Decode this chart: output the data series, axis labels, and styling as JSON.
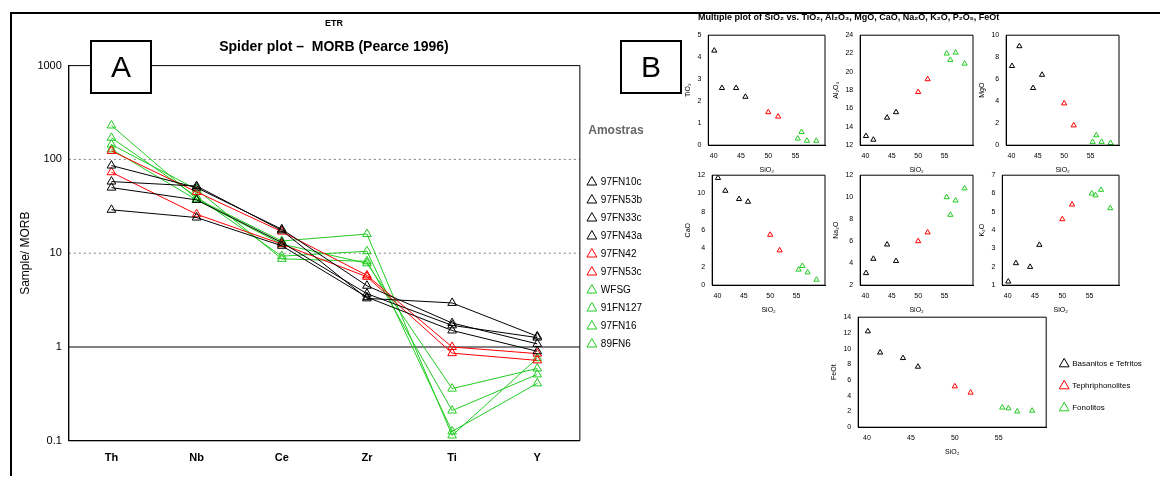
{
  "chart_data": [
    {
      "type": "line",
      "title": "ETR",
      "subtitle": "Spider plot –  MORB (Pearce 1996)",
      "ylabel": "Sample/ MORB",
      "legend_title": "Amostras",
      "legend": "right",
      "log": true,
      "marker": "triangle",
      "annotations": [
        "A"
      ],
      "categories": [
        "Th",
        "Nb",
        "Ce",
        "Zr",
        "Ti",
        "Y"
      ],
      "ylim": [
        0.1,
        1000
      ],
      "yticks": [
        0.1,
        1,
        10,
        100,
        1000
      ],
      "ref_lines": [
        {
          "axis": "y",
          "value": 1,
          "color": "#000000",
          "line_style": "solid"
        },
        {
          "axis": "y",
          "value": 10,
          "color": "#808080",
          "line_style": "dotted"
        },
        {
          "axis": "y",
          "value": 100,
          "color": "#808080",
          "line_style": "dotted"
        }
      ],
      "series": [
        {
          "name": "97FN10c",
          "color": "#000000",
          "values": [
            86,
            50,
            18,
            4.5,
            1.8,
            1.08
          ]
        },
        {
          "name": "97FN53b",
          "color": "#000000",
          "values": [
            58,
            52,
            17.5,
            3.3,
            2.95,
            1.3
          ]
        },
        {
          "name": "97FN33c",
          "color": "#000000",
          "values": [
            50,
            37,
            13,
            3.7,
            1.7,
            1.26
          ]
        },
        {
          "name": "97FN43a",
          "color": "#000000",
          "values": [
            29,
            24,
            12,
            3.4,
            1.5,
            0.9
          ]
        },
        {
          "name": "97FN42",
          "color": "#ff0000",
          "values": [
            123,
            45,
            17,
            5.8,
            1.0,
            0.85
          ]
        },
        {
          "name": "97FN53c",
          "color": "#ff0000",
          "values": [
            73,
            26,
            12.5,
            5.6,
            0.86,
            0.72
          ]
        },
        {
          "name": "WFSG",
          "color": "#22cc22",
          "values": [
            230,
            38,
            13.5,
            16,
            0.114,
            0.76
          ]
        },
        {
          "name": "91FN127",
          "color": "#22cc22",
          "values": [
            170,
            40,
            9.3,
            10.5,
            0.126,
            0.41
          ]
        },
        {
          "name": "97FN16",
          "color": "#22cc22",
          "values": [
            144,
            48,
            8.7,
            8.2,
            0.21,
            0.51
          ]
        },
        {
          "name": "89FN6",
          "color": "#22cc22",
          "values": [
            128,
            37,
            12.5,
            7.8,
            0.36,
            0.59
          ]
        }
      ]
    },
    {
      "type": "scatter",
      "title": "Multiple plot of SiO₂ vs. TiO₂, Al₂O₃, MgO, CaO, Na₂O, K₂O, P₂O₅, FeOt",
      "annotations": [
        "B"
      ],
      "xlabel": "SiO₂",
      "ylabel": "TiO₂",
      "marker": "triangle",
      "xlim": [
        39,
        60.4
      ],
      "xticks": [
        40,
        45,
        50,
        55
      ],
      "ylim": [
        0,
        5
      ],
      "yticks": [
        0,
        1,
        2,
        3,
        4,
        5
      ],
      "series": [
        {
          "color": "#000000",
          "x": [
            40.1,
            41.5,
            44.1,
            45.8
          ],
          "values": [
            4.3,
            2.6,
            2.6,
            2.2
          ]
        },
        {
          "color": "#ff0000",
          "x": [
            50.0,
            51.8
          ],
          "values": [
            1.5,
            1.3
          ]
        },
        {
          "color": "#22cc22",
          "x": [
            55.4,
            56.1,
            57.1,
            58.8
          ],
          "values": [
            0.3,
            0.6,
            0.2,
            0.2
          ]
        }
      ]
    },
    {
      "type": "scatter",
      "xlabel": "SiO₂",
      "ylabel": "Al₂O₃",
      "marker": "triangle",
      "xlim": [
        39,
        60.4
      ],
      "xticks": [
        40,
        45,
        50,
        55
      ],
      "ylim": [
        12,
        24
      ],
      "yticks": [
        12,
        14,
        16,
        18,
        20,
        22,
        24
      ],
      "series": [
        {
          "color": "#000000",
          "x": [
            40.1,
            41.5,
            44.1,
            45.8
          ],
          "values": [
            13.0,
            12.6,
            15.0,
            15.6
          ]
        },
        {
          "color": "#ff0000",
          "x": [
            50.0,
            51.8
          ],
          "values": [
            17.8,
            19.2
          ]
        },
        {
          "color": "#22cc22",
          "x": [
            55.4,
            56.1,
            57.1,
            58.8
          ],
          "values": [
            22.0,
            21.3,
            22.1,
            20.9
          ]
        }
      ]
    },
    {
      "type": "scatter",
      "xlabel": "SiO₂",
      "ylabel": "MgO",
      "marker": "triangle",
      "xlim": [
        39,
        60.4
      ],
      "xticks": [
        40,
        45,
        50,
        55
      ],
      "ylim": [
        0,
        10
      ],
      "yticks": [
        0,
        2,
        4,
        6,
        8,
        10
      ],
      "series": [
        {
          "color": "#000000",
          "x": [
            40.1,
            41.5,
            44.1,
            45.8
          ],
          "values": [
            7.2,
            9.0,
            5.2,
            6.4
          ]
        },
        {
          "color": "#ff0000",
          "x": [
            50.0,
            51.8
          ],
          "values": [
            3.8,
            1.8
          ]
        },
        {
          "color": "#22cc22",
          "x": [
            55.4,
            56.1,
            57.1,
            58.8
          ],
          "values": [
            0.3,
            0.9,
            0.3,
            0.2
          ]
        }
      ]
    },
    {
      "type": "scatter",
      "xlabel": "SiO₂",
      "ylabel": "CaO",
      "marker": "triangle",
      "xlim": [
        39,
        60.4
      ],
      "xticks": [
        40,
        45,
        50,
        55
      ],
      "ylim": [
        0,
        12
      ],
      "yticks": [
        0,
        2,
        4,
        6,
        8,
        10,
        12
      ],
      "series": [
        {
          "color": "#000000",
          "x": [
            40.1,
            41.5,
            44.1,
            45.8
          ],
          "values": [
            11.7,
            10.3,
            9.4,
            9.1
          ]
        },
        {
          "color": "#ff0000",
          "x": [
            50.0,
            51.8
          ],
          "values": [
            5.5,
            3.8
          ]
        },
        {
          "color": "#22cc22",
          "x": [
            55.4,
            56.1,
            57.1,
            58.8
          ],
          "values": [
            1.7,
            2.1,
            1.4,
            0.6
          ]
        }
      ]
    },
    {
      "type": "scatter",
      "xlabel": "SiO₂",
      "ylabel": "Na₂O",
      "marker": "triangle",
      "xlim": [
        39,
        60.4
      ],
      "xticks": [
        40,
        45,
        50,
        55
      ],
      "ylim": [
        2,
        12
      ],
      "yticks": [
        2,
        4,
        6,
        8,
        10,
        12
      ],
      "series": [
        {
          "color": "#000000",
          "x": [
            40.1,
            41.5,
            44.1,
            45.8
          ],
          "values": [
            3.1,
            4.4,
            5.7,
            4.2
          ]
        },
        {
          "color": "#ff0000",
          "x": [
            50.0,
            51.8
          ],
          "values": [
            6.0,
            6.8
          ]
        },
        {
          "color": "#22cc22",
          "x": [
            55.4,
            56.1,
            57.1,
            58.8
          ],
          "values": [
            10.0,
            8.4,
            9.7,
            10.8
          ]
        }
      ]
    },
    {
      "type": "scatter",
      "xlabel": "SiO₂",
      "ylabel": "K₂O",
      "marker": "triangle",
      "xlim": [
        39,
        60.4
      ],
      "xticks": [
        40,
        45,
        50,
        55
      ],
      "ylim": [
        1,
        7
      ],
      "yticks": [
        1,
        2,
        3,
        4,
        5,
        6,
        7
      ],
      "series": [
        {
          "color": "#000000",
          "x": [
            40.1,
            41.5,
            44.1,
            45.8
          ],
          "values": [
            1.2,
            2.2,
            2.0,
            3.2
          ]
        },
        {
          "color": "#ff0000",
          "x": [
            50.0,
            51.8
          ],
          "values": [
            4.6,
            5.4
          ]
        },
        {
          "color": "#22cc22",
          "x": [
            55.4,
            56.1,
            57.1,
            58.8
          ],
          "values": [
            6.0,
            5.9,
            6.2,
            5.2
          ]
        }
      ]
    },
    {
      "type": "scatter",
      "xlabel": "SiO₂",
      "ylabel": "FeOt",
      "marker": "triangle",
      "legend": "right",
      "xlim": [
        39,
        60.4
      ],
      "xticks": [
        40,
        45,
        50,
        55
      ],
      "ylim": [
        0,
        14
      ],
      "yticks": [
        0,
        2,
        4,
        6,
        8,
        10,
        12,
        14
      ],
      "series": [
        {
          "name": "Basanitos e Tefritos",
          "color": "#000000",
          "x": [
            40.1,
            41.5,
            44.1,
            45.8
          ],
          "values": [
            12.2,
            9.5,
            8.8,
            7.7
          ]
        },
        {
          "name": "Tephriphonolites",
          "color": "#ff0000",
          "x": [
            50.0,
            51.8
          ],
          "values": [
            5.2,
            4.4
          ]
        },
        {
          "name": "Fonolitos",
          "color": "#22cc22",
          "x": [
            55.4,
            56.1,
            57.1,
            58.8
          ],
          "values": [
            2.5,
            2.4,
            2.0,
            2.1
          ]
        }
      ]
    }
  ]
}
